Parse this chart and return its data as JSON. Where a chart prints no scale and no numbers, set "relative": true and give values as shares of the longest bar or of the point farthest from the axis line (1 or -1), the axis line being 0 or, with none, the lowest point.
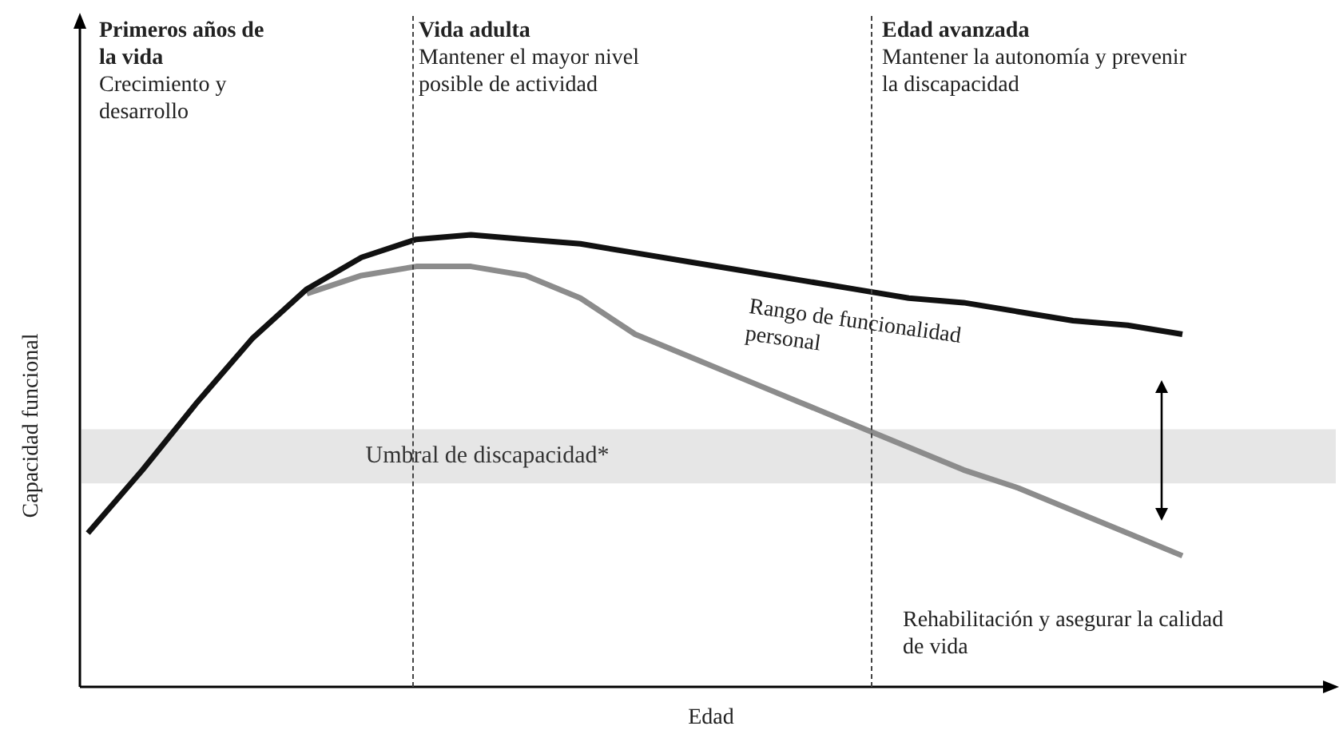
{
  "chart_data": {
    "type": "line",
    "relative": true,
    "xlabel": "Edad",
    "ylabel": "Capacidad funcional",
    "categories": [
      null,
      null,
      null,
      null,
      null,
      null,
      null,
      null,
      null,
      null,
      null,
      null,
      null,
      null,
      null,
      null,
      null,
      null,
      null,
      null,
      null
    ],
    "series": [
      {
        "color": "#111111",
        "values": [
          0.34,
          0.48,
          0.63,
          0.77,
          0.88,
          0.95,
          0.99,
          1.0,
          0.99,
          0.98,
          0.96,
          0.94,
          0.92,
          0.9,
          0.88,
          0.86,
          0.85,
          0.83,
          0.81,
          0.8,
          0.78
        ]
      },
      {
        "color": "#8c8c8c",
        "values": [
          null,
          null,
          null,
          null,
          0.87,
          0.91,
          0.93,
          0.93,
          0.91,
          0.86,
          0.78,
          0.73,
          0.68,
          0.63,
          0.58,
          0.53,
          0.48,
          0.44,
          0.39,
          0.34,
          0.29
        ]
      }
    ],
    "bands": [
      {
        "axis": "y",
        "from": 0.45,
        "to": 0.57,
        "label": "Umbral de discapacidad*",
        "color": "#e6e6e6"
      }
    ],
    "annotations": [
      "Primeros años de la vida",
      "Crecimiento y desarrollo",
      "Vida adulta",
      "Mantener el mayor nivel posible de actividad",
      "Edad avanzada",
      "Mantener la autonomía y prevenir la discapacidad",
      "Rango de funcionalidad personal",
      "Rehabilitación y asegurar la calidad de vida"
    ]
  }
}
